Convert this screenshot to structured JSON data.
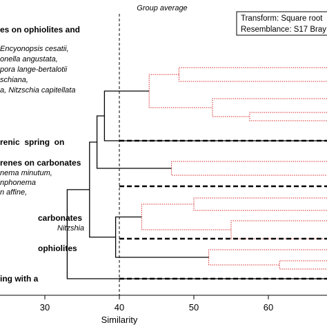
{
  "chart_data": {
    "type": "dendrogram",
    "title": "Group average",
    "xlabel": "Similarity",
    "xlim": [
      20,
      75
    ],
    "xticks": [
      30,
      40,
      50,
      60
    ],
    "reference_line": 40,
    "legend": {
      "transform": "Transform: Square root",
      "resemblance": "Resemblance: S17 Bray"
    },
    "group_labels": [
      "es on ophiolites and",
      "renic  spring  on",
      "renes on carbonates",
      "carbonates",
      "ophiolites",
      "ing with a"
    ],
    "species_labels": [
      "Encyonopsis cesatii,",
      "onella angustata,",
      "pora lange-bertalotii",
      "schiana,",
      "a, Nitzschia capitellata",
      "nema minutum,",
      "nphonema",
      "n affine,",
      "Nitzshia"
    ],
    "merges": [
      {
        "similarity": 48,
        "significant": true
      },
      {
        "similarity": 57.5,
        "significant": true
      },
      {
        "similarity": 52.5,
        "significant": true
      },
      {
        "similarity": 44,
        "significant": true
      },
      {
        "similarity": 38,
        "significant": false
      },
      {
        "similarity": 47,
        "significant": true
      },
      {
        "similarity": 37,
        "significant": false
      },
      {
        "similarity": 50,
        "significant": true
      },
      {
        "similarity": 55,
        "significant": true
      },
      {
        "similarity": 43,
        "significant": true
      },
      {
        "similarity": 61.5,
        "significant": true
      },
      {
        "similarity": 52,
        "significant": true
      },
      {
        "similarity": 39.5,
        "significant": false
      },
      {
        "similarity": 36,
        "significant": false
      },
      {
        "similarity": 33,
        "significant": false
      }
    ],
    "colors": {
      "significant": "#d62728",
      "nonsignificant": "#000000"
    }
  }
}
